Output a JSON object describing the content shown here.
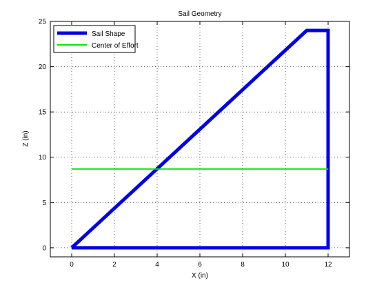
{
  "chart_data": {
    "type": "line",
    "title": "Sail Geometry",
    "xlabel": "X (in)",
    "ylabel": "Z (in)",
    "xlim": [
      -1,
      13
    ],
    "ylim": [
      -1,
      25
    ],
    "xticks": [
      0,
      2,
      4,
      6,
      8,
      10,
      12
    ],
    "yticks": [
      0,
      5,
      10,
      15,
      20,
      25
    ],
    "grid": true,
    "legend_position": "top-left",
    "series": [
      {
        "name": "Sail Shape",
        "color": "#0000e6",
        "style": "thick-solid",
        "x": [
          0,
          11,
          12,
          12,
          0
        ],
        "y": [
          0,
          24,
          24,
          0,
          0
        ]
      },
      {
        "name": "Center of Effort",
        "color": "#00e600",
        "style": "solid",
        "x": [
          0,
          12
        ],
        "y": [
          8.7,
          8.7
        ]
      }
    ]
  }
}
